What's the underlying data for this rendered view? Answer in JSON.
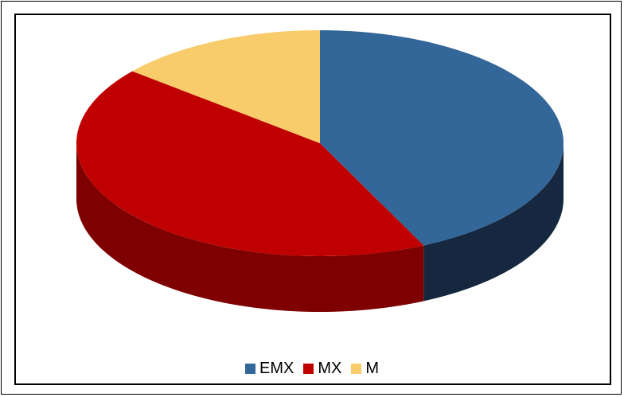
{
  "chart_data": {
    "type": "pie",
    "title": "",
    "categories": [
      "EMX",
      "MX",
      "M"
    ],
    "values": [
      43,
      43,
      14
    ],
    "colors": {
      "EMX": "#336699",
      "MX": "#C00000",
      "M": "#F8CB6B"
    },
    "side_colors": {
      "EMX": "#16283F",
      "MX": "#7E0000",
      "M": "#B48D3E"
    },
    "legend_position": "bottom",
    "style": "3d"
  }
}
